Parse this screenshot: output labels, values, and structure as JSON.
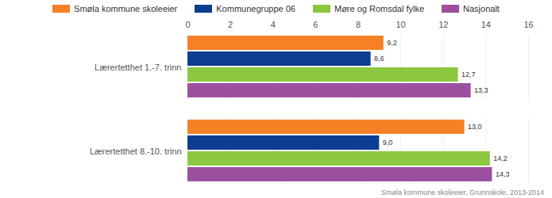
{
  "chart_data": {
    "type": "bar",
    "orientation": "horizontal",
    "caption": "Smøla kommune skoleeier, Grunnskole, 2013-2014",
    "categories": [
      "Lærertetthet 1.-7. trinn",
      "Lærertetthet 8.-10. trinn"
    ],
    "series": [
      {
        "name": "Smøla kommune skoleeier",
        "color": "#f58025",
        "values": [
          9.2,
          13.0
        ],
        "value_labels": [
          "9,2",
          "13,0"
        ]
      },
      {
        "name": "Kommunegruppe 06",
        "color": "#0b3d91",
        "values": [
          8.6,
          9.0
        ],
        "value_labels": [
          "8,6",
          "9,0"
        ]
      },
      {
        "name": "Møre og Romsdal fylke",
        "color": "#8dc63f",
        "values": [
          12.7,
          14.2
        ],
        "value_labels": [
          "12,7",
          "14,2"
        ]
      },
      {
        "name": "Nasjonalt",
        "color": "#9b4f9e",
        "values": [
          13.3,
          14.3
        ],
        "value_labels": [
          "13,3",
          "14,3"
        ]
      }
    ],
    "xlim": [
      0,
      16
    ],
    "xticks": [
      0,
      2,
      4,
      6,
      8,
      10,
      12,
      14,
      16
    ],
    "grid": true,
    "legend": "top",
    "data_labels": true
  }
}
